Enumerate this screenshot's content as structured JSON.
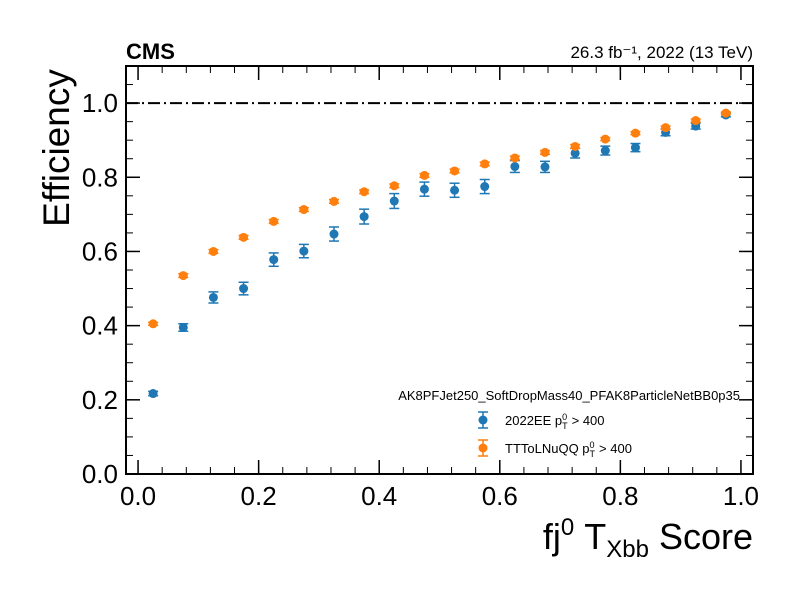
{
  "chart_data": {
    "type": "scatter",
    "experiment_label": "CMS",
    "lumi_label": "26.3 fb⁻¹, 2022 (13 TeV)",
    "ylabel": "Efficiency",
    "xlabel": {
      "base": "fj",
      "base_sup": "0",
      "var": "T",
      "var_sub": "Xbb",
      "suffix": "Score"
    },
    "xlim": [
      -0.02,
      1.02
    ],
    "ylim": [
      0.0,
      1.1
    ],
    "x_ticks": [
      0.0,
      0.2,
      0.4,
      0.6,
      0.8,
      1.0
    ],
    "x_tick_labels": [
      "0.0",
      "0.2",
      "0.4",
      "0.6",
      "0.8",
      "1.0"
    ],
    "y_ticks": [
      0.0,
      0.2,
      0.4,
      0.6,
      0.8,
      1.0
    ],
    "y_tick_labels": [
      "0.0",
      "0.2",
      "0.4",
      "0.6",
      "0.8",
      "1.0"
    ],
    "reference_line": {
      "y": 1.0,
      "style": "dashdot",
      "color": "#000000"
    },
    "legend": {
      "title": "AK8PFJet250_SoftDropMass40_PFAK8ParticleNetBB0p35",
      "placement": "lower-right"
    },
    "series": [
      {
        "name": "2022EE p",
        "name_sub": "T",
        "name_sup": "0",
        "name_cut": "> 400",
        "color": "#1f77b4",
        "x": [
          0.025,
          0.075,
          0.125,
          0.175,
          0.225,
          0.275,
          0.325,
          0.375,
          0.425,
          0.475,
          0.525,
          0.575,
          0.625,
          0.675,
          0.725,
          0.775,
          0.825,
          0.875,
          0.925,
          0.975
        ],
        "y": [
          0.217,
          0.395,
          0.476,
          0.5,
          0.578,
          0.601,
          0.647,
          0.694,
          0.736,
          0.768,
          0.765,
          0.775,
          0.829,
          0.828,
          0.865,
          0.872,
          0.88,
          0.921,
          0.938,
          0.968
        ],
        "err": [
          0.006,
          0.01,
          0.015,
          0.017,
          0.018,
          0.018,
          0.019,
          0.02,
          0.02,
          0.019,
          0.019,
          0.019,
          0.016,
          0.015,
          0.013,
          0.012,
          0.011,
          0.009,
          0.008,
          0.005
        ]
      },
      {
        "name": "TTToLNuQQ p",
        "name_sub": "T",
        "name_sup": "0",
        "name_cut": "> 400",
        "color": "#ff7f0e",
        "x": [
          0.025,
          0.075,
          0.125,
          0.175,
          0.225,
          0.275,
          0.325,
          0.375,
          0.425,
          0.475,
          0.525,
          0.575,
          0.625,
          0.675,
          0.725,
          0.775,
          0.825,
          0.875,
          0.925,
          0.975
        ],
        "y": [
          0.405,
          0.535,
          0.6,
          0.638,
          0.681,
          0.713,
          0.735,
          0.761,
          0.777,
          0.805,
          0.817,
          0.836,
          0.852,
          0.867,
          0.883,
          0.903,
          0.919,
          0.934,
          0.953,
          0.973
        ],
        "err": [
          0.004,
          0.005,
          0.005,
          0.005,
          0.005,
          0.005,
          0.005,
          0.005,
          0.005,
          0.005,
          0.005,
          0.005,
          0.005,
          0.005,
          0.005,
          0.004,
          0.004,
          0.004,
          0.004,
          0.003
        ]
      }
    ]
  }
}
